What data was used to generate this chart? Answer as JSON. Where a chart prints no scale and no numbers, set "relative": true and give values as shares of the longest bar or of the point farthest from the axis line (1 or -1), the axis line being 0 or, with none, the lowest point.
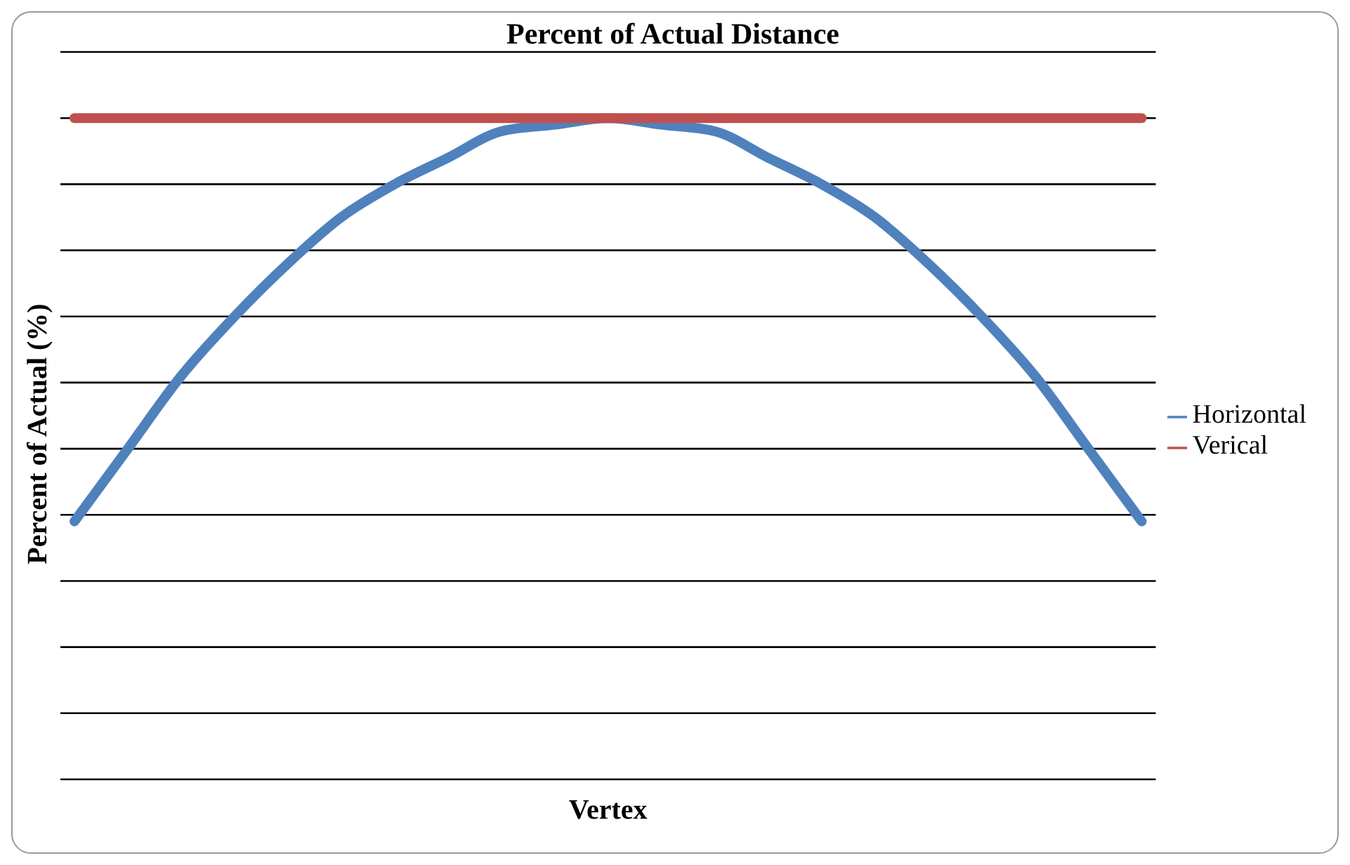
{
  "chart_data": {
    "type": "line",
    "title": "Percent of Actual Distance",
    "xlabel": "Vertex",
    "ylabel": "Percent of Actual (%)",
    "relative": true,
    "grid": "y",
    "legend": "right",
    "marker": "none",
    "line_style": "solid",
    "categories": [
      null,
      null,
      null,
      null,
      null,
      null,
      null,
      null,
      null,
      null,
      null,
      null,
      null,
      null,
      null,
      null,
      null,
      null,
      null,
      null,
      null
    ],
    "series": [
      {
        "name": "Horizontal",
        "color": "#4f81bd",
        "values": [
          0.39,
          0.5,
          0.61,
          0.7,
          0.78,
          0.85,
          0.9,
          0.94,
          0.98,
          0.99,
          1,
          0.99,
          0.98,
          0.94,
          0.9,
          0.85,
          0.78,
          0.7,
          0.61,
          0.5,
          0.39
        ]
      },
      {
        "name": "Verical",
        "color": "#c0504d",
        "values": [
          1,
          1,
          1,
          1,
          1,
          1,
          1,
          1,
          1,
          1,
          1,
          1,
          1,
          1,
          1,
          1,
          1,
          1,
          1,
          1,
          1
        ]
      }
    ]
  }
}
